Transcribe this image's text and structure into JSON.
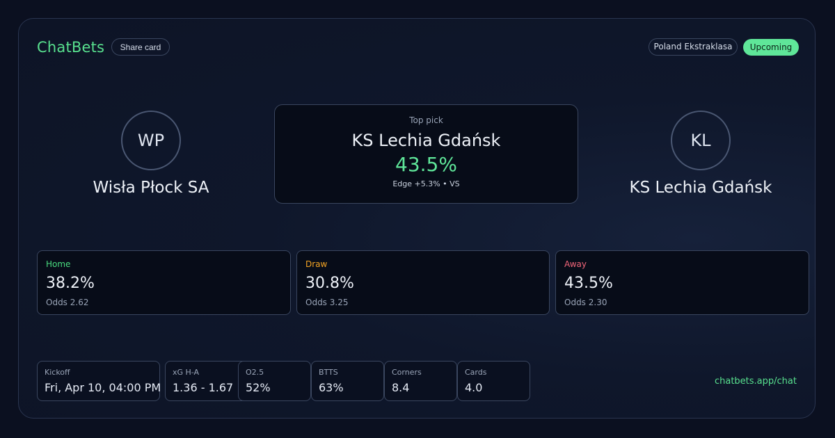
{
  "header": {
    "brand": "ChatBets",
    "share_label": "Share card",
    "league": "Poland Ekstraklasa",
    "status": "Upcoming"
  },
  "home_team": {
    "initials": "WP",
    "name": "Wisła Płock SA"
  },
  "away_team": {
    "initials": "KL",
    "name": "KS Lechia Gdańsk"
  },
  "top_pick": {
    "label": "Top pick",
    "team": "KS Lechia Gdańsk",
    "probability": "43.5%",
    "edge": "Edge +5.3% • VS"
  },
  "outcomes": [
    {
      "label": "Home",
      "probability": "38.2%",
      "odds": "Odds 2.62",
      "color": "#4ade80"
    },
    {
      "label": "Draw",
      "probability": "30.8%",
      "odds": "Odds 3.25",
      "color": "#f5a524"
    },
    {
      "label": "Away",
      "probability": "43.5%",
      "odds": "Odds 2.30",
      "color": "#f2667a"
    }
  ],
  "stats": [
    {
      "label": "Kickoff",
      "value": "Fri, Apr 10, 04:00 PM"
    },
    {
      "label": "xG H-A",
      "value": "1.36 - 1.67"
    },
    {
      "label": "O2.5",
      "value": "52%"
    },
    {
      "label": "BTTS",
      "value": "63%"
    },
    {
      "label": "Corners",
      "value": "8.4"
    },
    {
      "label": "Cards",
      "value": "4.0"
    }
  ],
  "footer": {
    "link": "chatbets.app/chat"
  }
}
